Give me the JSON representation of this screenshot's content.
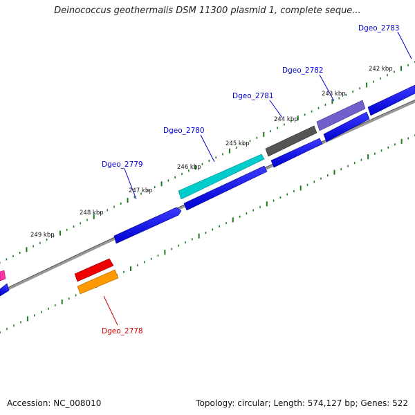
{
  "title": "Deinococcus geothermalis DSM 11300 plasmid 1, complete seque...",
  "footer": {
    "accession": "Accession: NC_008010",
    "summary": "Topology: circular; Length: 574,127 bp; Genes: 522"
  },
  "scale_labels": [
    "242 kbp",
    "243 kbp",
    "244 kbp",
    "245 kbp",
    "246 kbp",
    "247 kbp",
    "248 kbp",
    "249 kbp"
  ],
  "genes": [
    {
      "name": "Dgeo_2783",
      "color": "#0000cc"
    },
    {
      "name": "Dgeo_2782",
      "color": "#0000cc"
    },
    {
      "name": "Dgeo_2781",
      "color": "#0000cc"
    },
    {
      "name": "Dgeo_2780",
      "color": "#0000cc"
    },
    {
      "name": "Dgeo_2779",
      "color": "#0000cc"
    },
    {
      "name": "Dgeo_2778",
      "color": "#cc0000"
    }
  ],
  "colors": {
    "backbone": "#808080",
    "ticks": "#1a7a1a",
    "gene_blue": "#0000ee",
    "gene_cyan": "#00c8c8",
    "gene_gray": "#555555",
    "gene_purple": "#7060cc",
    "gene_red": "#ee0000",
    "gene_orange": "#ff9900",
    "gene_magenta": "#ff33aa"
  }
}
